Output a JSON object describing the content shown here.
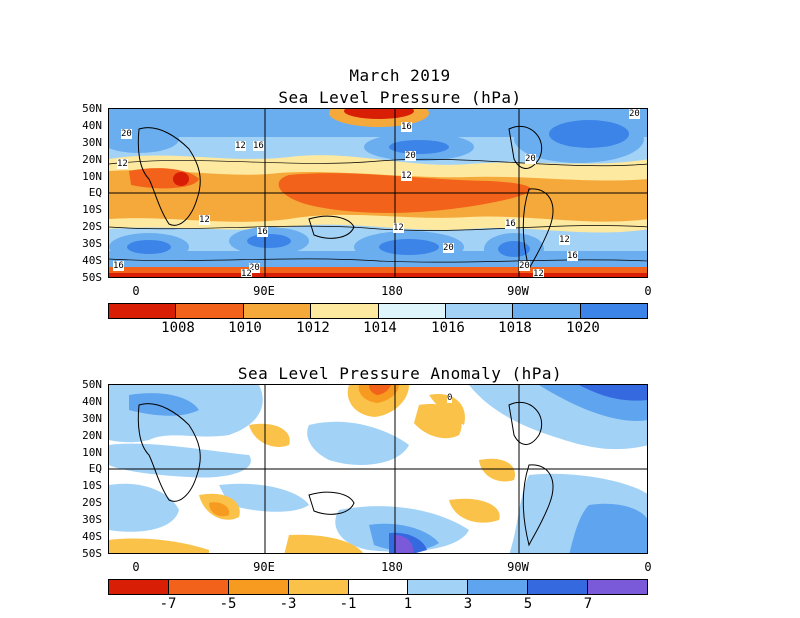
{
  "header": {
    "month": "March 2019"
  },
  "panel1": {
    "title": "Sea Level Pressure (hPa)",
    "lat_labels": [
      "50N",
      "40N",
      "30N",
      "20N",
      "10N",
      "EQ",
      "10S",
      "20S",
      "30S",
      "40S",
      "50S"
    ],
    "lon_labels": [
      "0",
      "90E",
      "180",
      "90W",
      "0"
    ],
    "contour_labels": [
      "20",
      "16",
      "12",
      "20",
      "12",
      "16",
      "12",
      "20",
      "16",
      "12",
      "16",
      "20",
      "12",
      "12",
      "16",
      "20",
      "20",
      "12",
      "16",
      "12",
      "20"
    ],
    "colorbar": {
      "colors": [
        "#d81e05",
        "#f2621a",
        "#f6a93b",
        "#fde9a0",
        "#ddf5fb",
        "#a3d2f7",
        "#6aaef0",
        "#3c84e8"
      ],
      "labels": [
        "1008",
        "1010",
        "1012",
        "1014",
        "1016",
        "1018",
        "1020"
      ]
    }
  },
  "panel2": {
    "title": "Sea Level Pressure Anomaly (hPa)",
    "lat_labels": [
      "50N",
      "40N",
      "30N",
      "20N",
      "10N",
      "EQ",
      "10S",
      "20S",
      "30S",
      "40S",
      "50S"
    ],
    "lon_labels": [
      "0",
      "90E",
      "180",
      "90W",
      "0"
    ],
    "contour_labels": [
      "0"
    ],
    "colorbar": {
      "colors": [
        "#d81e05",
        "#f2621a",
        "#f69a20",
        "#fbc24a",
        "#ffffff",
        "#a3d2f7",
        "#5fa4ef",
        "#3569e0",
        "#7a5ad8"
      ],
      "labels": [
        "-7",
        "-5",
        "-3",
        "-1",
        "1",
        "3",
        "5",
        "7"
      ]
    }
  }
}
